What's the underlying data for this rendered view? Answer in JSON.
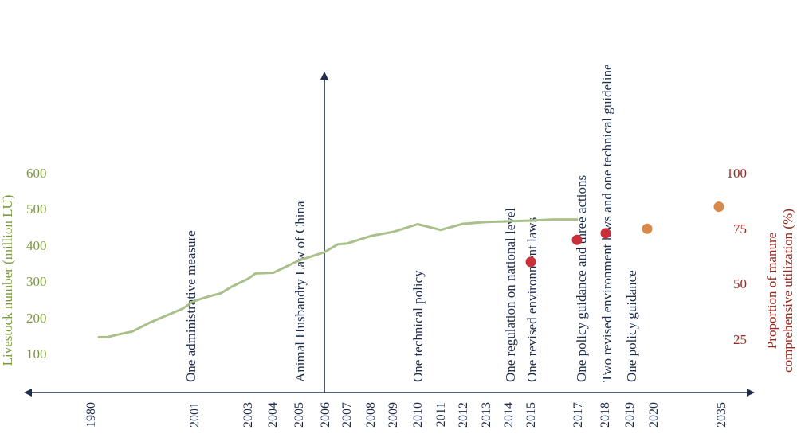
{
  "chart_data": {
    "type": "line",
    "x_axis": {
      "categories": [
        "1980",
        "2001",
        "2003",
        "2004",
        "2005",
        "2006",
        "2007",
        "2008",
        "2009",
        "2010",
        "2011",
        "2012",
        "2013",
        "2014",
        "2015",
        "2017",
        "2018",
        "2019",
        "2020",
        "2035"
      ]
    },
    "y_left": {
      "label": "Livestock number (million LU)",
      "ticks": [
        100,
        200,
        300,
        400,
        500,
        600
      ],
      "range": [
        0,
        650
      ]
    },
    "y_right": {
      "label_line1": "Proportion of manure",
      "label_line2": "comprehensive utilization (%)",
      "ticks": [
        25,
        50,
        75,
        100
      ]
    },
    "series": [
      {
        "kind": "line",
        "axis": "left",
        "color": "#a9c08a",
        "points": [
          {
            "x": 1980.0,
            "y": 150
          },
          {
            "x": 1980.5,
            "y": 150
          },
          {
            "x": 1981.2,
            "y": 158
          },
          {
            "x": 1982.0,
            "y": 166
          },
          {
            "x": 1983.0,
            "y": 190
          },
          {
            "x": 1984.0,
            "y": 210
          },
          {
            "x": 1985.0,
            "y": 230
          },
          {
            "x": 2001.0,
            "y": 250
          },
          {
            "x": 2001.5,
            "y": 262
          },
          {
            "x": 2002.0,
            "y": 272
          },
          {
            "x": 2002.4,
            "y": 290
          },
          {
            "x": 2003.0,
            "y": 312
          },
          {
            "x": 2003.3,
            "y": 327
          },
          {
            "x": 2004.0,
            "y": 329
          },
          {
            "x": 2005.0,
            "y": 363
          },
          {
            "x": 2006.0,
            "y": 386
          },
          {
            "x": 2006.6,
            "y": 408
          },
          {
            "x": 2007.0,
            "y": 410
          },
          {
            "x": 2008.0,
            "y": 431
          },
          {
            "x": 2009.0,
            "y": 443
          },
          {
            "x": 2010.0,
            "y": 464
          },
          {
            "x": 2011.0,
            "y": 448
          },
          {
            "x": 2012.0,
            "y": 465
          },
          {
            "x": 2013.0,
            "y": 470
          },
          {
            "x": 2014.0,
            "y": 472
          },
          {
            "x": 2015.0,
            "y": 474
          },
          {
            "x": 2016.0,
            "y": 477
          },
          {
            "x": 2017.0,
            "y": 477
          }
        ]
      },
      {
        "kind": "scatter",
        "axis": "right",
        "color": "#c8303a",
        "points": [
          {
            "x": "2015",
            "y": 60
          },
          {
            "x": "2017",
            "y": 70
          },
          {
            "x": "2018",
            "y": 73
          }
        ]
      },
      {
        "kind": "scatter",
        "axis": "right",
        "color": "#d9894a",
        "points": [
          {
            "x": "2020",
            "y": 75
          },
          {
            "x": "2035",
            "y": 85
          }
        ]
      }
    ],
    "annotations": [
      {
        "year": "2001",
        "lines": [
          "One administrative measure"
        ]
      },
      {
        "year": "2005",
        "lines": [
          "Animal Husbandry Law of China"
        ]
      },
      {
        "year": "2010",
        "lines": [
          "One technical policy"
        ]
      },
      {
        "year": "2014",
        "lines": [
          "One regulation on national level"
        ]
      },
      {
        "year": "2015",
        "lines": [
          "One revised environment laws"
        ]
      },
      {
        "year": "2017",
        "lines": [
          "One policy guidance and three actions"
        ]
      },
      {
        "year": "2018",
        "lines": [
          "Two revised environment laws and one technical guideline"
        ]
      },
      {
        "year": "2019",
        "lines": [
          "One policy guidance"
        ]
      }
    ],
    "grid": false,
    "legend": "none"
  }
}
